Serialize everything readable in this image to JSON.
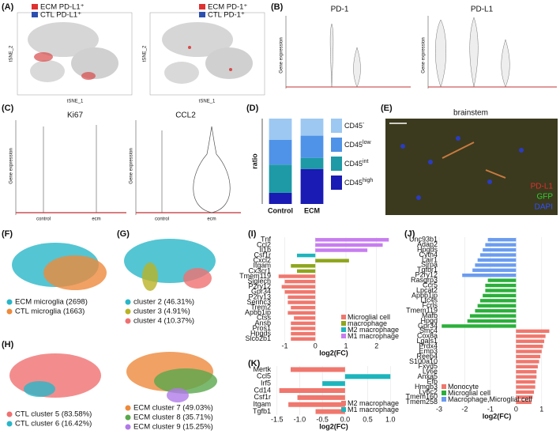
{
  "panel_labels": [
    "(A)",
    "(B)",
    "(C)",
    "(D)",
    "(E)",
    "(F)",
    "(G)",
    "(H)",
    "(I)",
    "(J)",
    "(K)"
  ],
  "panel_a": {
    "legend_left": [
      "ECM PD-L1⁺",
      "CTL PD-L1⁺"
    ],
    "legend_right": [
      "ECM PD-1⁺",
      "CTL PD-1⁺"
    ],
    "x_label": "tSNE_1",
    "y_label": "tSNE_2"
  },
  "panel_b": {
    "titles": [
      "PD-1",
      "PD-L1"
    ],
    "y_label": "Gene expression"
  },
  "panel_c": {
    "titles": [
      "Ki67",
      "CCL2"
    ],
    "y_label": "Gene expression",
    "categories": [
      "control",
      "ecm"
    ]
  },
  "panel_e": {
    "title": "brainstem",
    "channels": [
      "PD-L1",
      "GFP",
      "DAPI"
    ]
  },
  "panel_f": {
    "legend": [
      "ECM microglia (2698)",
      "CTL microglia (1663)"
    ]
  },
  "panel_g": {
    "legend": [
      "cluster 2 (46.31%)",
      "cluster 3 (4.91%)",
      "cluster 4 (10.37%)"
    ]
  },
  "panel_h": {
    "legend_left": [
      "CTL cluster 5 (83.58%)",
      "CTL cluster 6 (16.42%)"
    ],
    "legend_right": [
      "ECM cluster 7 (49.03%)",
      "ECM cluster 8 (35.71%)",
      "ECM cluster 9 (15.25%)"
    ]
  },
  "chart_data": [
    {
      "type": "bar",
      "stacked": true,
      "y_label": "ratio",
      "categories": [
        "Control",
        "ECM"
      ],
      "ylim": [
        0,
        1
      ],
      "series": [
        {
          "name": "CD45",
          "sup": "high",
          "color": "#1a1ab4",
          "values": [
            0.13,
            0.41
          ]
        },
        {
          "name": "CD45",
          "sup": "int",
          "color": "#1d9aa6",
          "values": [
            0.33,
            0.13
          ]
        },
        {
          "name": "CD45",
          "sup": "low",
          "color": "#4f93e8",
          "values": [
            0.29,
            0.26
          ]
        },
        {
          "name": "CD45",
          "sup": "-",
          "color": "#9cc8f2",
          "values": [
            0.25,
            0.2
          ]
        }
      ]
    },
    {
      "type": "hbar",
      "x_label": "log2(FC)",
      "legend": "lower right",
      "xlim": [
        -1.4,
        2.6
      ],
      "xticks": [
        -1,
        0,
        1,
        2
      ],
      "grid": true,
      "categories": [
        "Tnf",
        "Ccl2",
        "Il1b",
        "Csf1r",
        "Cxcl2",
        "Itgam",
        "Cx3cr1",
        "Tmem119",
        "Siglech",
        "P2ry12",
        "Gpr34",
        "P2ry13",
        "Serinc3",
        "Trem2",
        "Apbb1ip",
        "Ctss",
        "Ansb",
        "Pros1",
        "Hpgds",
        "Slco2b1"
      ],
      "series": [
        {
          "name": "Microglial cell",
          "color": "#f0776d",
          "values": [
            null,
            null,
            null,
            null,
            null,
            null,
            null,
            -1.2,
            -1.0,
            -1.1,
            -1.0,
            -0.9,
            -0.9,
            -0.8,
            -0.9,
            -0.7,
            -0.8,
            -0.8,
            -0.8,
            -0.8
          ]
        },
        {
          "name": "macrophage",
          "color": "#8fa51c",
          "values": [
            null,
            null,
            null,
            null,
            1.1,
            -0.8,
            -0.6,
            null,
            null,
            null,
            null,
            null,
            null,
            null,
            null,
            null,
            null,
            null,
            null,
            null
          ]
        },
        {
          "name": "M2 macrophage",
          "color": "#1db5bd",
          "values": [
            null,
            null,
            null,
            -0.6,
            null,
            null,
            null,
            null,
            null,
            null,
            null,
            null,
            null,
            null,
            null,
            null,
            null,
            null,
            null,
            null
          ]
        },
        {
          "name": "M1 macrophage",
          "color": "#c77df0",
          "values": [
            2.4,
            2.2,
            1.7,
            null,
            null,
            null,
            null,
            null,
            null,
            null,
            null,
            null,
            null,
            null,
            null,
            null,
            null,
            null,
            null,
            null
          ]
        }
      ]
    },
    {
      "type": "hbar",
      "x_label": "log2(FC)",
      "legend": "lower left",
      "xlim": [
        -3,
        1.5
      ],
      "xticks": [
        -3,
        -2,
        -1,
        0,
        1
      ],
      "grid": true,
      "categories": [
        "Unc93b1",
        "Adap2",
        "Hpgds",
        "Cyth4",
        "Lair1",
        "Sirpa",
        "Tgfbr1",
        "P2ry12",
        "Rasgrp3",
        "Ccr5",
        "Lpcat2",
        "Apbb1ip",
        "Ltc4s",
        "Fcrls",
        "Tmem119",
        "Mafb",
        "Hpgd",
        "Gpr34",
        "Smc4",
        "Cox8a",
        "Lgals1",
        "Prdx4",
        "Emp3",
        "Reep4",
        "S100a10",
        "Fxyd5",
        "Ly6e",
        "Anxa5",
        "Efb",
        "Hmgb3",
        "Ly6c2",
        "Tmem160",
        "Tmem258"
      ],
      "series": [
        {
          "name": "Monocyte",
          "color": "#f0776d",
          "values": [
            null,
            null,
            null,
            null,
            null,
            null,
            null,
            null,
            null,
            null,
            null,
            null,
            null,
            null,
            null,
            null,
            null,
            null,
            1.3,
            1.15,
            1.1,
            1.05,
            1.0,
            0.95,
            0.9,
            0.85,
            0.8,
            0.8,
            0.75,
            0.75,
            0.7,
            0.65,
            0.6
          ]
        },
        {
          "name": "Microglial cell",
          "color": "#2ab03a",
          "values": [
            null,
            null,
            null,
            null,
            null,
            null,
            null,
            null,
            -1.1,
            -1.2,
            -1.2,
            -1.3,
            -1.4,
            -1.5,
            -1.6,
            -1.8,
            -1.9,
            -2.9,
            null,
            null,
            null,
            null,
            null,
            null,
            null,
            null,
            null,
            null,
            null,
            null,
            null,
            null,
            null
          ]
        },
        {
          "name": "Macrophage,Microglial cell",
          "color": "#6a9cf0",
          "values": [
            -1.1,
            -1.2,
            -1.3,
            -1.4,
            -1.5,
            -1.6,
            -1.7,
            -2.1,
            null,
            null,
            null,
            null,
            null,
            null,
            null,
            null,
            null,
            null,
            null,
            null,
            null,
            null,
            null,
            null,
            null,
            null,
            null,
            null,
            null,
            null,
            null,
            null,
            null
          ]
        }
      ]
    },
    {
      "type": "hbar",
      "x_label": "log2(FC)",
      "legend": "lower right",
      "xlim": [
        -1.6,
        1.1
      ],
      "grid": true,
      "xticks": [
        {
          "value": -1.5,
          "label": "-1.5"
        },
        {
          "value": -1,
          "label": "-1.0"
        },
        -0.5,
        {
          "value": 0,
          "label": "0.0"
        },
        0.5,
        {
          "value": 1,
          "label": "1.0"
        }
      ],
      "categories": [
        "Mertk",
        "Ccl5",
        "Irf5",
        "Cd14",
        "Csf1r",
        "Itgam",
        "Tgfb1"
      ],
      "series": [
        {
          "name": "M2 macrophage",
          "color": "#f0776d",
          "values": [
            -1.2,
            null,
            null,
            -1.45,
            -1.05,
            -1.25,
            -0.65
          ]
        },
        {
          "name": "M1 macrophage",
          "color": "#1db5bd",
          "values": [
            null,
            1.0,
            -0.5,
            null,
            null,
            null,
            null
          ]
        }
      ]
    }
  ]
}
